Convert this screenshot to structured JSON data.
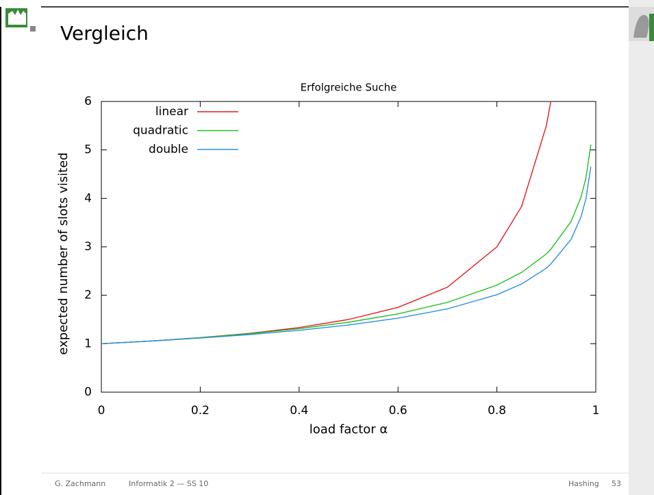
{
  "slide": {
    "title": "Vergleich",
    "footer": {
      "author": "G. Zachmann",
      "course": "Informatik 2 — SS 10",
      "topic": "Hashing",
      "page": "53"
    }
  },
  "chart_data": {
    "type": "line",
    "title": "Erfolgreiche Suche",
    "x_label": "load factor α",
    "y_label": "expected number of slots visited",
    "x": [
      0,
      0.1,
      0.2,
      0.3,
      0.4,
      0.5,
      0.6,
      0.7,
      0.8,
      0.85,
      0.9,
      0.909,
      0.95,
      0.97,
      0.98,
      0.99
    ],
    "series": [
      {
        "name": "linear",
        "color": "#e41a1c",
        "values": [
          1,
          1.056,
          1.125,
          1.214,
          1.333,
          1.5,
          1.75,
          2.167,
          3.0,
          3.833,
          5.5,
          6.0,
          null,
          null,
          null,
          null
        ]
      },
      {
        "name": "quadratic",
        "color": "#1fbf1f",
        "values": [
          1,
          1.055,
          1.123,
          1.207,
          1.311,
          1.443,
          1.616,
          1.854,
          2.209,
          2.472,
          2.853,
          2.95,
          3.521,
          4.022,
          4.422,
          5.11
        ]
      },
      {
        "name": "double",
        "color": "#2a8fe0",
        "values": [
          1,
          1.054,
          1.116,
          1.189,
          1.277,
          1.386,
          1.527,
          1.72,
          2.012,
          2.232,
          2.558,
          2.646,
          3.153,
          3.615,
          3.992,
          4.652
        ]
      }
    ],
    "xlim": [
      0,
      1
    ],
    "ylim": [
      0,
      6
    ],
    "xticks": [
      0,
      0.2,
      0.4,
      0.6,
      0.8,
      1
    ],
    "yticks": [
      0,
      1,
      2,
      3,
      4,
      5,
      6
    ],
    "legend": "top-left"
  }
}
